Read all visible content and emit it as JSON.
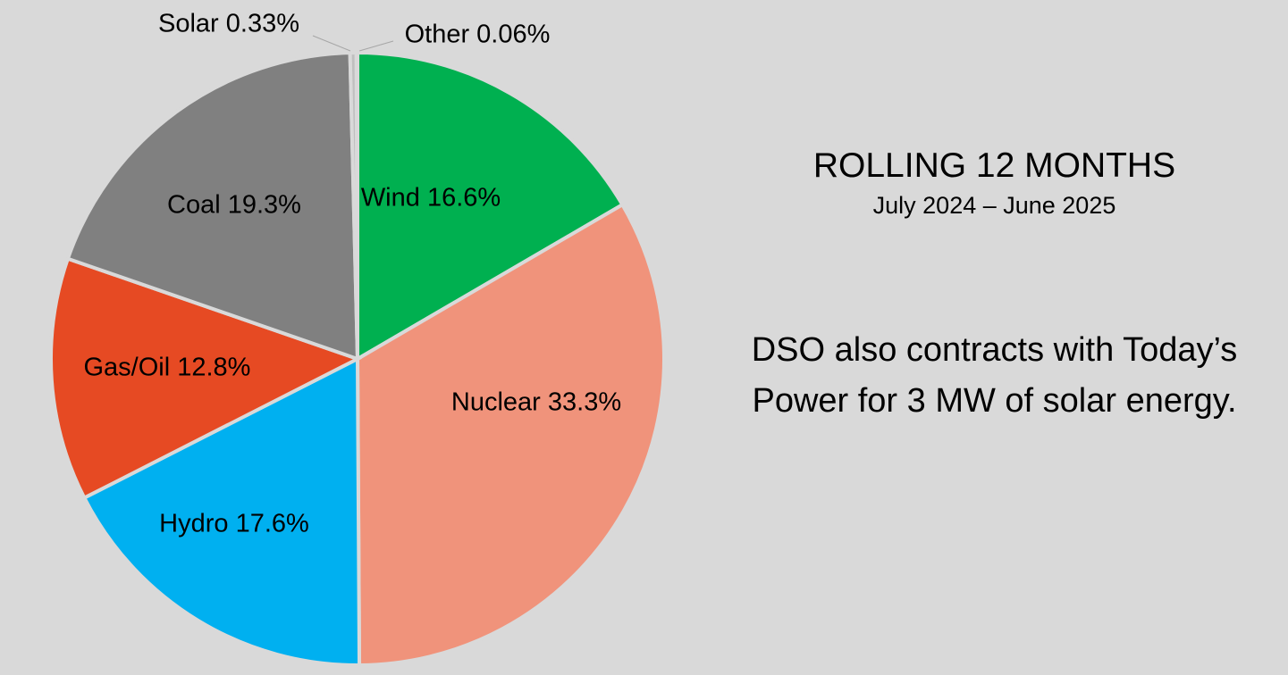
{
  "chart_data": {
    "type": "pie",
    "slices": [
      {
        "label": "Wind 16.6%",
        "value": 16.6,
        "color": "#00b050"
      },
      {
        "label": "Nuclear 33.3%",
        "value": 33.3,
        "color": "#f0937b"
      },
      {
        "label": "Hydro 17.6%",
        "value": 17.6,
        "color": "#00b0f0"
      },
      {
        "label": "Gas/Oil 12.8%",
        "value": 12.8,
        "color": "#e64a23"
      },
      {
        "label": "Coal 19.3%",
        "value": 19.3,
        "color": "#808080"
      },
      {
        "label": "Solar 0.33%",
        "value": 0.33,
        "color": "#bfbfbf"
      },
      {
        "label": "Other 0.06%",
        "value": 0.06,
        "color": "#b35a4a"
      }
    ]
  },
  "side_panel": {
    "title": "ROLLING 12 MONTHS",
    "range": "July 2024 – June 2025",
    "note": "DSO also contracts with Today’s Power for 3 MW of solar energy."
  }
}
